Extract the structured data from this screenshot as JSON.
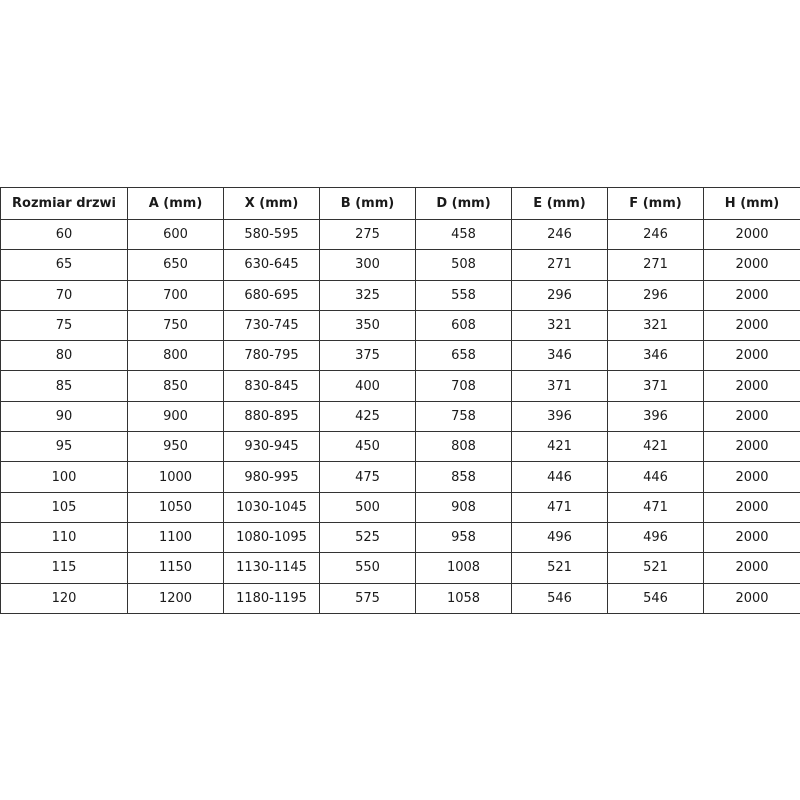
{
  "table": {
    "headers": [
      "Rozmiar drzwi",
      "A (mm)",
      "X (mm)",
      "B (mm)",
      "D (mm)",
      "E (mm)",
      "F (mm)",
      "H (mm)"
    ],
    "rows": [
      [
        "60",
        "600",
        "580-595",
        "275",
        "458",
        "246",
        "246",
        "2000"
      ],
      [
        "65",
        "650",
        "630-645",
        "300",
        "508",
        "271",
        "271",
        "2000"
      ],
      [
        "70",
        "700",
        "680-695",
        "325",
        "558",
        "296",
        "296",
        "2000"
      ],
      [
        "75",
        "750",
        "730-745",
        "350",
        "608",
        "321",
        "321",
        "2000"
      ],
      [
        "80",
        "800",
        "780-795",
        "375",
        "658",
        "346",
        "346",
        "2000"
      ],
      [
        "85",
        "850",
        "830-845",
        "400",
        "708",
        "371",
        "371",
        "2000"
      ],
      [
        "90",
        "900",
        "880-895",
        "425",
        "758",
        "396",
        "396",
        "2000"
      ],
      [
        "95",
        "950",
        "930-945",
        "450",
        "808",
        "421",
        "421",
        "2000"
      ],
      [
        "100",
        "1000",
        "980-995",
        "475",
        "858",
        "446",
        "446",
        "2000"
      ],
      [
        "105",
        "1050",
        "1030-1045",
        "500",
        "908",
        "471",
        "471",
        "2000"
      ],
      [
        "110",
        "1100",
        "1080-1095",
        "525",
        "958",
        "496",
        "496",
        "2000"
      ],
      [
        "115",
        "1150",
        "1130-1145",
        "550",
        "1008",
        "521",
        "521",
        "2000"
      ],
      [
        "120",
        "1200",
        "1180-1195",
        "575",
        "1058",
        "546",
        "546",
        "2000"
      ]
    ]
  }
}
